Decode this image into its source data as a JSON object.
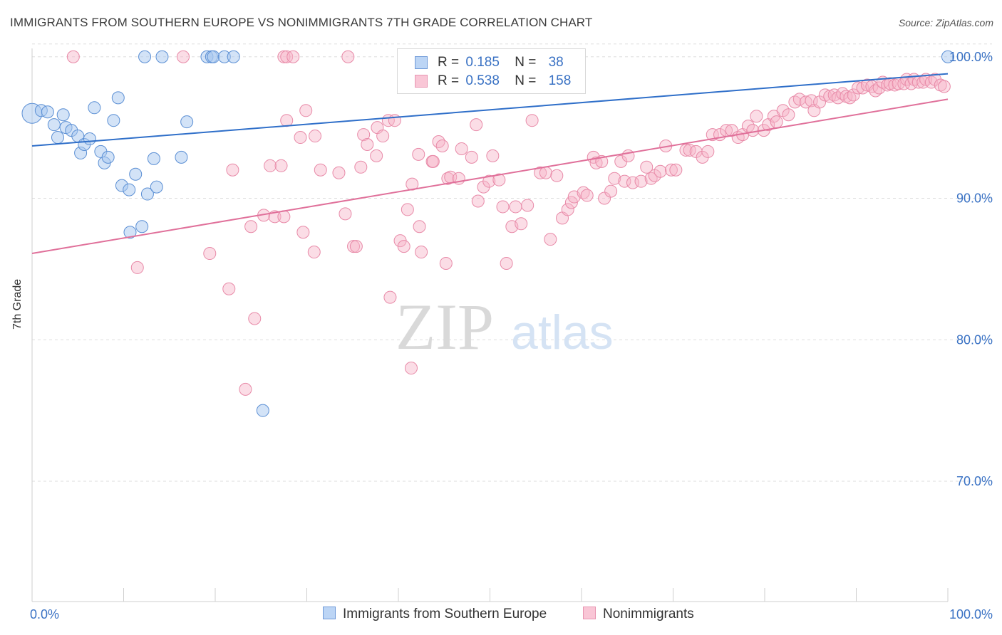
{
  "header": {
    "title": "IMMIGRANTS FROM SOUTHERN EUROPE VS NONIMMIGRANTS 7TH GRADE CORRELATION CHART",
    "source": "Source: ZipAtlas.com"
  },
  "watermark": {
    "zip": "ZIP",
    "atlas": "atlas"
  },
  "legend": {
    "rows": [
      {
        "r_label": "R =",
        "r_value": "0.185",
        "n_label": "N =",
        "n_value": "38"
      },
      {
        "r_label": "R =",
        "r_value": "0.538",
        "n_label": "N =",
        "n_value": "158"
      }
    ],
    "bottom": [
      "Immigrants from Southern Europe",
      "Nonimmigrants"
    ]
  },
  "colors": {
    "blue_fill": "#a8c8f0",
    "blue_stroke": "#5b8fd4",
    "blue_line": "#2f6fc9",
    "pink_fill": "#f7b3c8",
    "pink_stroke": "#e88aa8",
    "pink_line": "#e0709a",
    "axis_label": "#3a72c4",
    "grid": "#dddddd"
  },
  "chart_data": {
    "type": "scatter",
    "xlabel": "",
    "ylabel": "7th Grade",
    "xlim": [
      0,
      100
    ],
    "ylim": [
      61.5,
      102
    ],
    "x_tick_labels": [
      "0.0%",
      "100.0%"
    ],
    "y_ticks": [
      70,
      80,
      90,
      100
    ],
    "y_tick_labels": [
      "70.0%",
      "80.0%",
      "90.0%",
      "100.0%"
    ],
    "grid": true,
    "legend_position": "top-center",
    "series": [
      {
        "name": "Immigrants from Southern Europe",
        "color": "#a8c8f0",
        "trend": [
          [
            0,
            93.7
          ],
          [
            100,
            98.8
          ]
        ],
        "points": [
          [
            0,
            96
          ],
          [
            1,
            96.2
          ],
          [
            1.7,
            96.1
          ],
          [
            2.4,
            95.2
          ],
          [
            2.8,
            94.3
          ],
          [
            3.4,
            95.9
          ],
          [
            3.7,
            95
          ],
          [
            4.3,
            94.8
          ],
          [
            5,
            94.4
          ],
          [
            5.3,
            93.2
          ],
          [
            5.7,
            93.8
          ],
          [
            6.3,
            94.2
          ],
          [
            6.8,
            96.4
          ],
          [
            7.5,
            93.3
          ],
          [
            7.9,
            92.5
          ],
          [
            8.3,
            92.9
          ],
          [
            8.9,
            95.5
          ],
          [
            9.4,
            97.1
          ],
          [
            9.8,
            90.9
          ],
          [
            10.6,
            90.6
          ],
          [
            10.7,
            87.6
          ],
          [
            11.3,
            91.7
          ],
          [
            12,
            88
          ],
          [
            12.6,
            90.3
          ],
          [
            13.3,
            92.8
          ],
          [
            13.6,
            90.8
          ],
          [
            12.3,
            100
          ],
          [
            14.2,
            100
          ],
          [
            16.3,
            92.9
          ],
          [
            16.9,
            95.4
          ],
          [
            19.1,
            100
          ],
          [
            19.6,
            100
          ],
          [
            19.8,
            100
          ],
          [
            21,
            100
          ],
          [
            22,
            100
          ],
          [
            25.2,
            75
          ],
          [
            100,
            100
          ]
        ]
      },
      {
        "name": "Nonimmigrants",
        "color": "#f7b3c8",
        "trend": [
          [
            0,
            86.1
          ],
          [
            100,
            97
          ]
        ],
        "points": [
          [
            4.5,
            100
          ],
          [
            16.5,
            100
          ],
          [
            27.5,
            100
          ],
          [
            27.8,
            100
          ],
          [
            34.5,
            100
          ],
          [
            11.5,
            85.1
          ],
          [
            19.4,
            86.1
          ],
          [
            21.5,
            83.6
          ],
          [
            21.9,
            92
          ],
          [
            23.3,
            76.5
          ],
          [
            23.9,
            88
          ],
          [
            24.3,
            81.5
          ],
          [
            25.3,
            88.8
          ],
          [
            26,
            92.3
          ],
          [
            26.5,
            88.7
          ],
          [
            27.2,
            92.3
          ],
          [
            27.5,
            88.7
          ],
          [
            27.8,
            95.5
          ],
          [
            28.5,
            100
          ],
          [
            29.3,
            94.3
          ],
          [
            29.6,
            87.6
          ],
          [
            29.9,
            96.2
          ],
          [
            30.8,
            86.2
          ],
          [
            30.9,
            94.4
          ],
          [
            31.5,
            92
          ],
          [
            33.5,
            91.8
          ],
          [
            34.2,
            88.9
          ],
          [
            35.1,
            86.6
          ],
          [
            35.4,
            86.6
          ],
          [
            35.9,
            92.2
          ],
          [
            36.2,
            94.5
          ],
          [
            36.6,
            93.8
          ],
          [
            37.6,
            93
          ],
          [
            37.7,
            95
          ],
          [
            38.3,
            94.4
          ],
          [
            38.9,
            95.5
          ],
          [
            39.1,
            83
          ],
          [
            39.6,
            95.5
          ],
          [
            40.2,
            87
          ],
          [
            40.6,
            86.6
          ],
          [
            41,
            89.2
          ],
          [
            41.5,
            91
          ],
          [
            41.4,
            78
          ],
          [
            42.2,
            93.1
          ],
          [
            42.3,
            88
          ],
          [
            42.5,
            86.2
          ],
          [
            43.7,
            92.6
          ],
          [
            43.8,
            92.6
          ],
          [
            44.4,
            94
          ],
          [
            44.8,
            93.7
          ],
          [
            45.2,
            85.4
          ],
          [
            45.4,
            91.4
          ],
          [
            45.7,
            91.5
          ],
          [
            46.6,
            91.4
          ],
          [
            46.9,
            93.5
          ],
          [
            48,
            92.9
          ],
          [
            48.5,
            95.2
          ],
          [
            48.7,
            89.8
          ],
          [
            49.3,
            90.8
          ],
          [
            49.9,
            91.2
          ],
          [
            50.3,
            93
          ],
          [
            51,
            91.3
          ],
          [
            51.4,
            89.4
          ],
          [
            51.8,
            85.4
          ],
          [
            52.4,
            88
          ],
          [
            52.8,
            89.4
          ],
          [
            53.4,
            88.2
          ],
          [
            54.1,
            89.5
          ],
          [
            54.6,
            95.5
          ],
          [
            55.5,
            91.8
          ],
          [
            56.1,
            91.8
          ],
          [
            56.6,
            87.1
          ],
          [
            57.3,
            91.6
          ],
          [
            57.9,
            88.6
          ],
          [
            58.5,
            89.2
          ],
          [
            58.9,
            89.7
          ],
          [
            59.2,
            90.1
          ],
          [
            60.2,
            90.4
          ],
          [
            60.6,
            90.2
          ],
          [
            61.3,
            92.9
          ],
          [
            61.6,
            92.5
          ],
          [
            62.2,
            92.6
          ],
          [
            62.5,
            90
          ],
          [
            63.2,
            90.5
          ],
          [
            63.6,
            91.4
          ],
          [
            64.3,
            92.6
          ],
          [
            64.7,
            91.2
          ],
          [
            65.1,
            93
          ],
          [
            65.6,
            91.1
          ],
          [
            66.5,
            91.2
          ],
          [
            67.1,
            92.2
          ],
          [
            67.6,
            91.4
          ],
          [
            68,
            91.6
          ],
          [
            68.6,
            91.9
          ],
          [
            69.2,
            93.7
          ],
          [
            69.8,
            92
          ],
          [
            70.3,
            92
          ],
          [
            71.4,
            93.4
          ],
          [
            71.8,
            93.4
          ],
          [
            72.5,
            93.3
          ],
          [
            73.2,
            92.9
          ],
          [
            73.8,
            93.3
          ],
          [
            74.3,
            94.5
          ],
          [
            75.1,
            94.5
          ],
          [
            75.8,
            94.8
          ],
          [
            76.4,
            94.8
          ],
          [
            77.1,
            94.3
          ],
          [
            77.6,
            94.5
          ],
          [
            78.2,
            95.1
          ],
          [
            78.7,
            94.8
          ],
          [
            79.1,
            95.8
          ],
          [
            79.9,
            94.8
          ],
          [
            80.4,
            95.2
          ],
          [
            81,
            95.8
          ],
          [
            81.3,
            95.4
          ],
          [
            82,
            96.2
          ],
          [
            82.6,
            95.9
          ],
          [
            83.3,
            96.8
          ],
          [
            83.8,
            97
          ],
          [
            84.5,
            96.8
          ],
          [
            85.1,
            96.9
          ],
          [
            85.4,
            96.2
          ],
          [
            86,
            96.8
          ],
          [
            86.6,
            97.3
          ],
          [
            87.1,
            97.2
          ],
          [
            87.6,
            97.3
          ],
          [
            88,
            97.1
          ],
          [
            88.5,
            97.4
          ],
          [
            88.9,
            97.2
          ],
          [
            89.3,
            97.1
          ],
          [
            89.7,
            97.3
          ],
          [
            90.2,
            97.8
          ],
          [
            90.7,
            97.8
          ],
          [
            91.2,
            98
          ],
          [
            91.7,
            97.9
          ],
          [
            92.1,
            97.6
          ],
          [
            92.5,
            97.8
          ],
          [
            92.9,
            98.2
          ],
          [
            93.4,
            98
          ],
          [
            93.7,
            98.1
          ],
          [
            94.2,
            98
          ],
          [
            94.6,
            98.1
          ],
          [
            95.2,
            98.1
          ],
          [
            95.5,
            98.4
          ],
          [
            96,
            98.1
          ],
          [
            96.3,
            98.4
          ],
          [
            96.8,
            98.2
          ],
          [
            97.3,
            98.2
          ],
          [
            97.6,
            98.4
          ],
          [
            98.2,
            98.2
          ],
          [
            98.6,
            98.4
          ],
          [
            99.2,
            98
          ],
          [
            99.6,
            97.9
          ]
        ]
      }
    ]
  }
}
